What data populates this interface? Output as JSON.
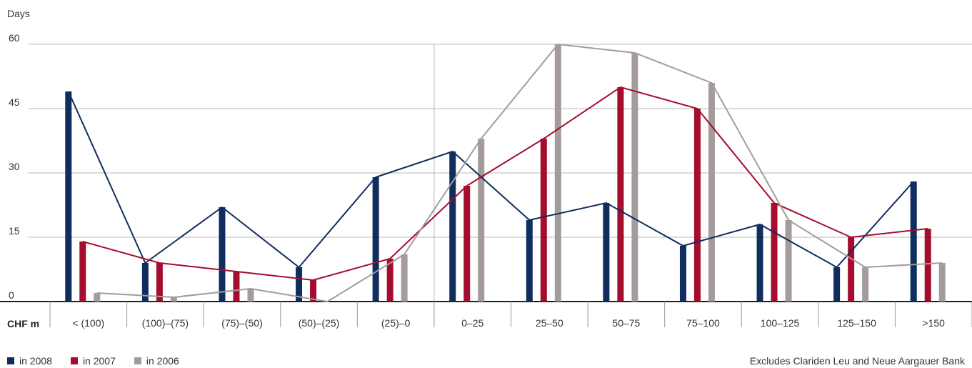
{
  "chart_data": {
    "type": "bar",
    "ylabel": "Days",
    "xlabel": "CHF m",
    "ylim": [
      0,
      60
    ],
    "yticks": [
      0,
      15,
      30,
      45,
      60
    ],
    "grid": true,
    "categories": [
      "< (100)",
      "(100)–(75)",
      "(75)–(50)",
      "(50)–(25)",
      "(25)–0",
      "0–25",
      "25–50",
      "50–75",
      "75–100",
      "100–125",
      "125–150",
      ">150"
    ],
    "series": [
      {
        "name": "in 2008",
        "color": "#0f2d5e",
        "values": [
          49,
          9,
          22,
          8,
          29,
          35,
          19,
          23,
          13,
          18,
          8,
          28
        ]
      },
      {
        "name": "in 2007",
        "color": "#a50d2e",
        "values": [
          14,
          9,
          7,
          5,
          10,
          27,
          38,
          50,
          45,
          23,
          15,
          17
        ]
      },
      {
        "name": "in 2006",
        "color": "#a39c9a",
        "values": [
          2,
          1,
          3,
          0,
          11,
          38,
          60,
          58,
          51,
          19,
          8,
          9
        ]
      }
    ],
    "legend_position": "bottom-left",
    "note": "Excludes Clariden Leu and Neue Aargauer Bank"
  }
}
